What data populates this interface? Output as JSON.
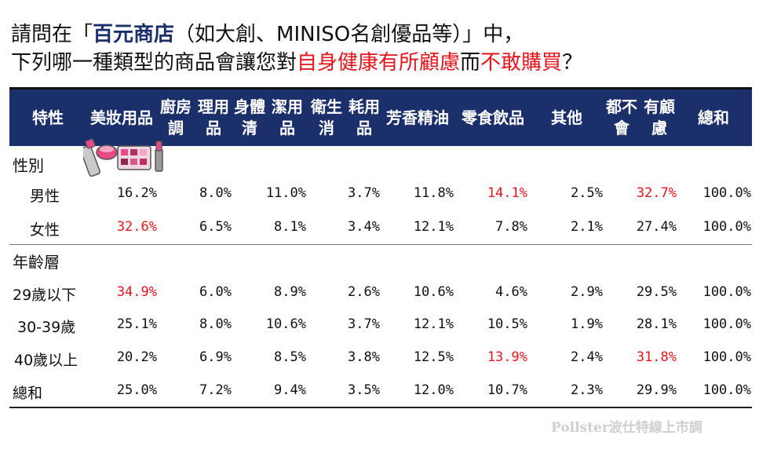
{
  "title": {
    "line1_a": "請問在「",
    "line1_b": "百元商店",
    "line1_c": "（如大創、MINISO名創優品等）」中，",
    "line2_a": "下列哪一種類型的商品會讓您對",
    "line2_b": "自身健康有所顧慮",
    "line2_c": "而",
    "line2_d": "不敢購買",
    "line2_e": "？"
  },
  "colors": {
    "header_bg": "#1b2f6b",
    "highlight": "#e8141b"
  },
  "chart_data": {
    "type": "table",
    "columns": [
      [
        "特性"
      ],
      [
        "美妝",
        "用品"
      ],
      [
        "廚房調",
        "理用品"
      ],
      [
        "身體清",
        "潔用品"
      ],
      [
        "衛生消",
        "耗用品"
      ],
      [
        "芳香",
        "精油"
      ],
      [
        "零食",
        "飲品"
      ],
      [
        "其他"
      ],
      [
        "都不會",
        "有顧慮"
      ],
      [
        "總和"
      ]
    ],
    "groups": [
      {
        "label": "性別",
        "rows": [
          {
            "label": "男性",
            "values": [
              "16.2%",
              "8.0%",
              "11.0%",
              "3.7%",
              "11.8%",
              "14.1%",
              "2.5%",
              "32.7%",
              "100.0%"
            ],
            "highlight": [
              5,
              7
            ]
          },
          {
            "label": "女性",
            "values": [
              "32.6%",
              "6.5%",
              "8.1%",
              "3.4%",
              "12.1%",
              "7.8%",
              "2.1%",
              "27.4%",
              "100.0%"
            ],
            "highlight": [
              0
            ]
          }
        ]
      },
      {
        "label": "年齡層",
        "rows": [
          {
            "label": "29歲以下",
            "values": [
              "34.9%",
              "6.0%",
              "8.9%",
              "2.6%",
              "10.6%",
              "4.6%",
              "2.9%",
              "29.5%",
              "100.0%"
            ],
            "highlight": [
              0
            ]
          },
          {
            "label": "30-39歲",
            "values": [
              "25.1%",
              "8.0%",
              "10.6%",
              "3.7%",
              "12.1%",
              "10.5%",
              "1.9%",
              "28.1%",
              "100.0%"
            ],
            "highlight": []
          },
          {
            "label": "40歲以上",
            "values": [
              "20.2%",
              "6.9%",
              "8.5%",
              "3.8%",
              "12.5%",
              "13.9%",
              "2.4%",
              "31.8%",
              "100.0%"
            ],
            "highlight": [
              5,
              7
            ]
          }
        ]
      }
    ],
    "total": {
      "label": "總和",
      "values": [
        "25.0%",
        "7.2%",
        "9.4%",
        "3.5%",
        "12.0%",
        "10.7%",
        "2.3%",
        "29.9%",
        "100.0%"
      ]
    }
  },
  "watermark": "Pollster波仕特線上市調"
}
